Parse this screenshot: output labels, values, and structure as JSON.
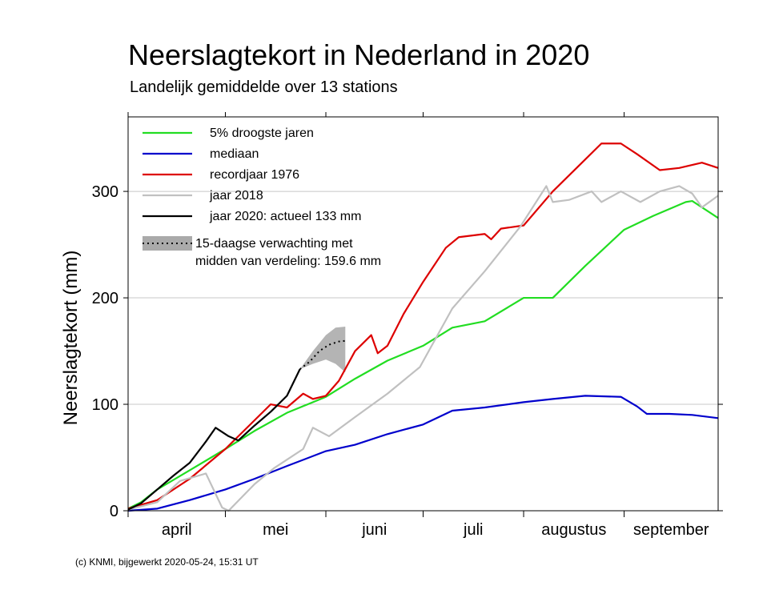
{
  "chart_data": {
    "type": "line",
    "title": "Neerslagtekort in Nederland in 2020",
    "subtitle": "Landelijk gemiddelde over 13 stations",
    "ylabel": "Neerslagtekort (mm)",
    "xlabel": "",
    "ylim": [
      0,
      370
    ],
    "yticks": [
      0,
      100,
      200,
      300
    ],
    "x_range": [
      "2020-04-01",
      "2020-09-30"
    ],
    "month_labels": [
      {
        "label": "april",
        "start": "2020-04-01"
      },
      {
        "label": "mei",
        "start": "2020-05-01"
      },
      {
        "label": "juni",
        "start": "2020-06-01"
      },
      {
        "label": "juli",
        "start": "2020-07-01"
      },
      {
        "label": "augustus",
        "start": "2020-08-01"
      },
      {
        "label": "september",
        "start": "2020-09-01"
      }
    ],
    "grid": "horizontal",
    "legend_position": "top-left",
    "series": [
      {
        "name": "5% droogste jaren",
        "color": "#22dd22",
        "points": [
          [
            "2020-04-01",
            2
          ],
          [
            "2020-04-05",
            8
          ],
          [
            "2020-04-10",
            20
          ],
          [
            "2020-04-20",
            38
          ],
          [
            "2020-05-01",
            58
          ],
          [
            "2020-05-10",
            75
          ],
          [
            "2020-05-20",
            92
          ],
          [
            "2020-06-01",
            107
          ],
          [
            "2020-06-10",
            124
          ],
          [
            "2020-06-20",
            141
          ],
          [
            "2020-07-01",
            155
          ],
          [
            "2020-07-10",
            172
          ],
          [
            "2020-07-20",
            178
          ],
          [
            "2020-08-01",
            200
          ],
          [
            "2020-08-05",
            200
          ],
          [
            "2020-08-10",
            200
          ],
          [
            "2020-08-20",
            230
          ],
          [
            "2020-09-01",
            264
          ],
          [
            "2020-09-10",
            277
          ],
          [
            "2020-09-20",
            290
          ],
          [
            "2020-09-22",
            291
          ],
          [
            "2020-09-30",
            275
          ]
        ]
      },
      {
        "name": "mediaan",
        "color": "#0000cc",
        "points": [
          [
            "2020-04-01",
            0
          ],
          [
            "2020-04-10",
            2
          ],
          [
            "2020-04-20",
            10
          ],
          [
            "2020-05-01",
            20
          ],
          [
            "2020-05-10",
            30
          ],
          [
            "2020-05-20",
            42
          ],
          [
            "2020-06-01",
            56
          ],
          [
            "2020-06-10",
            62
          ],
          [
            "2020-06-20",
            72
          ],
          [
            "2020-07-01",
            81
          ],
          [
            "2020-07-10",
            94
          ],
          [
            "2020-07-20",
            97
          ],
          [
            "2020-08-01",
            102
          ],
          [
            "2020-08-10",
            105
          ],
          [
            "2020-08-20",
            108
          ],
          [
            "2020-08-31",
            107
          ],
          [
            "2020-09-05",
            98
          ],
          [
            "2020-09-08",
            91
          ],
          [
            "2020-09-15",
            91
          ],
          [
            "2020-09-22",
            90
          ],
          [
            "2020-09-30",
            87
          ]
        ]
      },
      {
        "name": "recordjaar 1976",
        "color": "#dd0000",
        "points": [
          [
            "2020-04-01",
            2
          ],
          [
            "2020-04-10",
            10
          ],
          [
            "2020-04-20",
            30
          ],
          [
            "2020-05-01",
            58
          ],
          [
            "2020-05-10",
            85
          ],
          [
            "2020-05-15",
            100
          ],
          [
            "2020-05-20",
            97
          ],
          [
            "2020-05-25",
            110
          ],
          [
            "2020-05-28",
            105
          ],
          [
            "2020-06-01",
            108
          ],
          [
            "2020-06-05",
            122
          ],
          [
            "2020-06-10",
            150
          ],
          [
            "2020-06-15",
            165
          ],
          [
            "2020-06-17",
            148
          ],
          [
            "2020-06-20",
            155
          ],
          [
            "2020-06-25",
            185
          ],
          [
            "2020-07-01",
            215
          ],
          [
            "2020-07-08",
            247
          ],
          [
            "2020-07-12",
            257
          ],
          [
            "2020-07-20",
            260
          ],
          [
            "2020-07-22",
            255
          ],
          [
            "2020-07-25",
            265
          ],
          [
            "2020-08-01",
            268
          ],
          [
            "2020-08-10",
            300
          ],
          [
            "2020-08-20",
            330
          ],
          [
            "2020-08-25",
            345
          ],
          [
            "2020-08-31",
            345
          ],
          [
            "2020-09-05",
            335
          ],
          [
            "2020-09-12",
            320
          ],
          [
            "2020-09-18",
            322
          ],
          [
            "2020-09-25",
            327
          ],
          [
            "2020-09-30",
            322
          ]
        ]
      },
      {
        "name": "jaar 2018",
        "color": "#c0c0c0",
        "points": [
          [
            "2020-04-01",
            1
          ],
          [
            "2020-04-10",
            8
          ],
          [
            "2020-04-17",
            28
          ],
          [
            "2020-04-25",
            35
          ],
          [
            "2020-04-30",
            3
          ],
          [
            "2020-05-02",
            0
          ],
          [
            "2020-05-10",
            25
          ],
          [
            "2020-05-16",
            40
          ],
          [
            "2020-05-20",
            48
          ],
          [
            "2020-05-25",
            58
          ],
          [
            "2020-05-28",
            78
          ],
          [
            "2020-06-02",
            70
          ],
          [
            "2020-06-10",
            88
          ],
          [
            "2020-06-20",
            110
          ],
          [
            "2020-06-30",
            135
          ],
          [
            "2020-07-10",
            190
          ],
          [
            "2020-07-20",
            225
          ],
          [
            "2020-07-31",
            267
          ],
          [
            "2020-08-08",
            305
          ],
          [
            "2020-08-10",
            290
          ],
          [
            "2020-08-15",
            292
          ],
          [
            "2020-08-22",
            300
          ],
          [
            "2020-08-25",
            290
          ],
          [
            "2020-08-31",
            300
          ],
          [
            "2020-09-06",
            290
          ],
          [
            "2020-09-12",
            300
          ],
          [
            "2020-09-18",
            305
          ],
          [
            "2020-09-22",
            298
          ],
          [
            "2020-09-25",
            285
          ],
          [
            "2020-09-30",
            296
          ]
        ]
      },
      {
        "name": "jaar 2020: actueel 133 mm",
        "color": "#000000",
        "points": [
          [
            "2020-04-01",
            1
          ],
          [
            "2020-04-05",
            7
          ],
          [
            "2020-04-10",
            20
          ],
          [
            "2020-04-15",
            33
          ],
          [
            "2020-04-20",
            45
          ],
          [
            "2020-04-25",
            65
          ],
          [
            "2020-04-28",
            78
          ],
          [
            "2020-05-02",
            70
          ],
          [
            "2020-05-05",
            66
          ],
          [
            "2020-05-10",
            80
          ],
          [
            "2020-05-15",
            93
          ],
          [
            "2020-05-20",
            108
          ],
          [
            "2020-05-24",
            133
          ]
        ]
      }
    ],
    "forecast": {
      "name": "15-daagse verwachting met midden van verdeling: 159.6 mm",
      "color": "#999999",
      "median": [
        [
          "2020-05-24",
          133
        ],
        [
          "2020-05-27",
          140
        ],
        [
          "2020-05-30",
          150
        ],
        [
          "2020-06-02",
          156
        ],
        [
          "2020-06-05",
          159
        ],
        [
          "2020-06-07",
          159.6
        ]
      ],
      "upper": [
        [
          "2020-05-24",
          133
        ],
        [
          "2020-05-28",
          150
        ],
        [
          "2020-06-01",
          165
        ],
        [
          "2020-06-04",
          172
        ],
        [
          "2020-06-07",
          173
        ]
      ],
      "lower": [
        [
          "2020-05-24",
          133
        ],
        [
          "2020-05-28",
          138
        ],
        [
          "2020-06-01",
          142
        ],
        [
          "2020-06-04",
          138
        ],
        [
          "2020-06-07",
          130
        ]
      ]
    },
    "legend": [
      {
        "label": "5% droogste jaren",
        "color": "#22dd22",
        "style": "line"
      },
      {
        "label": "mediaan",
        "color": "#0000cc",
        "style": "line"
      },
      {
        "label": "recordjaar 1976",
        "color": "#dd0000",
        "style": "line"
      },
      {
        "label": "jaar 2018",
        "color": "#c0c0c0",
        "style": "line"
      },
      {
        "label": "jaar 2020: actueel 133 mm",
        "color": "#000000",
        "style": "line"
      },
      {
        "label": "15-daagse verwachting met",
        "label2": "midden van verdeling: 159.6 mm",
        "color": "#aaaaaa",
        "style": "band"
      }
    ]
  },
  "footer": "(c) KNMI, bijgewerkt 2020-05-24, 15:31 UT"
}
